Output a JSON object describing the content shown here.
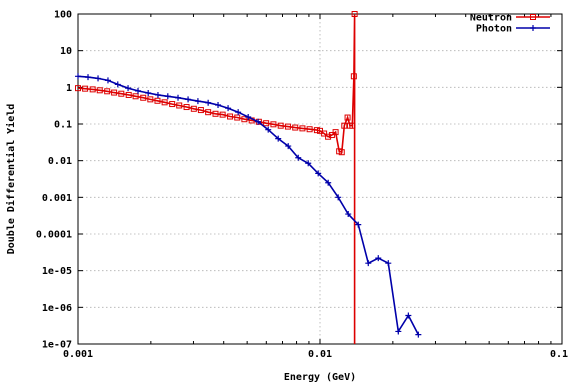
{
  "chart_data": {
    "type": "line",
    "xlabel": "Energy (GeV)",
    "ylabel": "Double Differential Yield",
    "x_scale": "log",
    "y_scale": "log",
    "xlim": [
      0.001,
      0.1
    ],
    "ylim": [
      1e-07,
      100
    ],
    "x_ticks": [
      0.001,
      0.01,
      0.1
    ],
    "x_tick_labels": [
      "0.001",
      "0.01",
      "0.1"
    ],
    "y_ticks": [
      1e-07,
      1e-06,
      1e-05,
      0.0001,
      0.001,
      0.01,
      0.1,
      1,
      10,
      100
    ],
    "y_tick_labels": [
      "1e-07",
      "1e-06",
      "1e-05",
      "0.0001",
      "0.001",
      "0.01",
      "0.1",
      "1",
      "10",
      "100"
    ],
    "grid": true,
    "legend_position": "top-right",
    "series": [
      {
        "name": "Neutron",
        "color": "#dd0000",
        "marker": "square",
        "x": [
          0.001,
          0.00107,
          0.00115,
          0.00123,
          0.00132,
          0.00141,
          0.00151,
          0.00162,
          0.00173,
          0.00186,
          0.00199,
          0.00213,
          0.00228,
          0.00245,
          0.00262,
          0.00281,
          0.00301,
          0.00322,
          0.00345,
          0.0037,
          0.00396,
          0.00425,
          0.00455,
          0.00487,
          0.00522,
          0.00559,
          0.00599,
          0.00642,
          0.00688,
          0.00737,
          0.0079,
          0.00846,
          0.00906,
          0.00971,
          0.01,
          0.0104,
          0.0108,
          0.0112,
          0.0116,
          0.012,
          0.0123,
          0.0126,
          0.013,
          0.0133,
          0.0136,
          0.0138,
          0.0139,
          0.0139
        ],
        "y": [
          0.95,
          0.92,
          0.88,
          0.83,
          0.78,
          0.72,
          0.67,
          0.62,
          0.57,
          0.52,
          0.47,
          0.43,
          0.39,
          0.35,
          0.32,
          0.29,
          0.26,
          0.24,
          0.21,
          0.19,
          0.18,
          0.16,
          0.15,
          0.135,
          0.125,
          0.115,
          0.105,
          0.098,
          0.09,
          0.085,
          0.08,
          0.076,
          0.072,
          0.068,
          0.065,
          0.055,
          0.045,
          0.05,
          0.06,
          0.018,
          0.017,
          0.09,
          0.15,
          0.09,
          0.09,
          2.0,
          100,
          1e-07
        ]
      },
      {
        "name": "Photon",
        "color": "#0000aa",
        "marker": "plus",
        "x": [
          0.001,
          0.0011,
          0.00121,
          0.00133,
          0.00146,
          0.00161,
          0.00177,
          0.00195,
          0.00214,
          0.00235,
          0.00259,
          0.00285,
          0.00313,
          0.00345,
          0.00379,
          0.00417,
          0.00459,
          0.00505,
          0.00555,
          0.00611,
          0.00672,
          0.00739,
          0.00813,
          0.00894,
          0.00983,
          0.01081,
          0.01189,
          0.01308,
          0.01439,
          0.01583,
          0.01741,
          0.01915,
          0.02107,
          0.02318,
          0.02549
        ],
        "y": [
          2.0,
          1.9,
          1.75,
          1.55,
          1.2,
          0.95,
          0.8,
          0.7,
          0.62,
          0.57,
          0.52,
          0.47,
          0.42,
          0.38,
          0.33,
          0.27,
          0.21,
          0.155,
          0.115,
          0.07,
          0.04,
          0.025,
          0.012,
          0.0085,
          0.0045,
          0.0025,
          0.001,
          0.00035,
          0.00018,
          1.6e-05,
          2.2e-05,
          1.6e-05,
          2.2e-07,
          6e-07,
          1.8e-07
        ]
      }
    ]
  }
}
